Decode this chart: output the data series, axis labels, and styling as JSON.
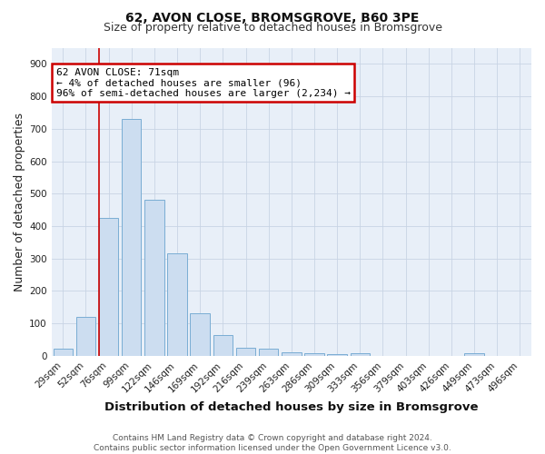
{
  "title": "62, AVON CLOSE, BROMSGROVE, B60 3PE",
  "subtitle": "Size of property relative to detached houses in Bromsgrove",
  "xlabel": "Distribution of detached houses by size in Bromsgrove",
  "ylabel": "Number of detached properties",
  "footer_line1": "Contains HM Land Registry data © Crown copyright and database right 2024.",
  "footer_line2": "Contains public sector information licensed under the Open Government Licence v3.0.",
  "bar_labels": [
    "29sqm",
    "52sqm",
    "76sqm",
    "99sqm",
    "122sqm",
    "146sqm",
    "169sqm",
    "192sqm",
    "216sqm",
    "239sqm",
    "263sqm",
    "286sqm",
    "309sqm",
    "333sqm",
    "356sqm",
    "379sqm",
    "403sqm",
    "426sqm",
    "449sqm",
    "473sqm",
    "496sqm"
  ],
  "bar_heights": [
    22,
    120,
    425,
    730,
    480,
    315,
    130,
    65,
    25,
    22,
    12,
    7,
    5,
    7,
    0,
    0,
    0,
    0,
    8,
    0,
    0
  ],
  "bar_color": "#ccddf0",
  "bar_edge_color": "#7aadd4",
  "red_line_index": 2,
  "annotation_line1": "62 AVON CLOSE: 71sqm",
  "annotation_line2": "← 4% of detached houses are smaller (96)",
  "annotation_line3": "96% of semi-detached houses are larger (2,234) →",
  "annotation_box_color": "#ffffff",
  "annotation_box_edge": "#cc0000",
  "annotation_text_color": "#000000",
  "red_line_color": "#cc0000",
  "ylim": [
    0,
    950
  ],
  "yticks": [
    0,
    100,
    200,
    300,
    400,
    500,
    600,
    700,
    800,
    900
  ],
  "background_color": "#ffffff",
  "plot_bg_color": "#e8eff8",
  "grid_color": "#c8d4e4",
  "title_fontsize": 10,
  "subtitle_fontsize": 9,
  "axis_label_fontsize": 9,
  "tick_fontsize": 7.5,
  "footer_fontsize": 6.5,
  "annotation_fontsize": 8
}
